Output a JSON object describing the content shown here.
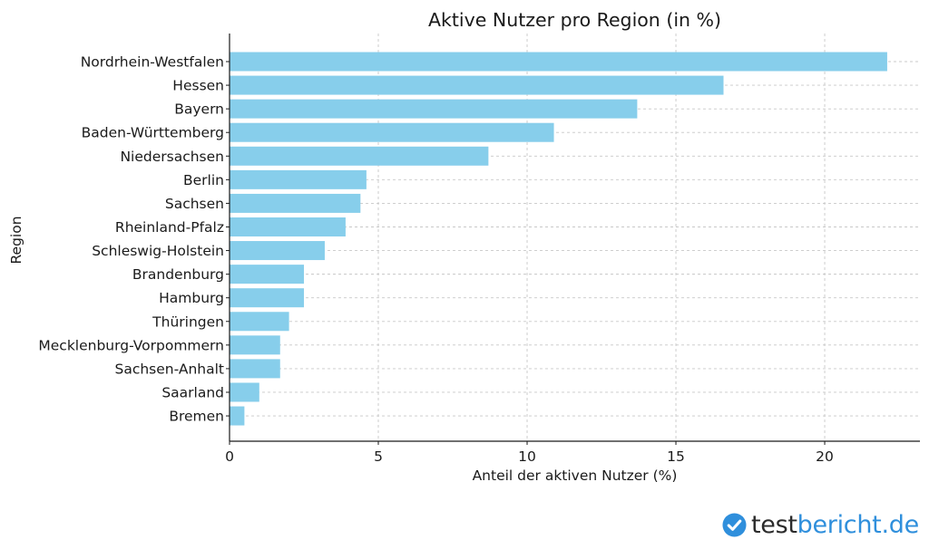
{
  "chart_data": {
    "type": "bar",
    "orientation": "horizontal",
    "title": "Aktive Nutzer pro Region (in %)",
    "xlabel": "Anteil der aktiven Nutzer (%)",
    "ylabel": "Region",
    "categories": [
      "Nordrhein-Westfalen",
      "Hessen",
      "Bayern",
      "Baden-Württemberg",
      "Niedersachsen",
      "Berlin",
      "Sachsen",
      "Rheinland-Pfalz",
      "Schleswig-Holstein",
      "Brandenburg",
      "Hamburg",
      "Thüringen",
      "Mecklenburg-Vorpommern",
      "Sachsen-Anhalt",
      "Saarland",
      "Bremen"
    ],
    "values": [
      22.1,
      16.6,
      13.7,
      10.9,
      8.7,
      4.6,
      4.4,
      3.9,
      3.2,
      2.5,
      2.5,
      2.0,
      1.7,
      1.7,
      1.0,
      0.5
    ],
    "xlim": [
      0,
      23.2
    ],
    "xticks": [
      "0",
      "5",
      "10",
      "15",
      "20"
    ],
    "grid": true,
    "bar_color": "#87ceeb"
  },
  "watermark": {
    "brand_part1": "test",
    "brand_part2": "bericht.de",
    "icon": "check-circle-icon",
    "color_dark": "#2b2b2b",
    "color_blue": "#2f8fdc"
  }
}
